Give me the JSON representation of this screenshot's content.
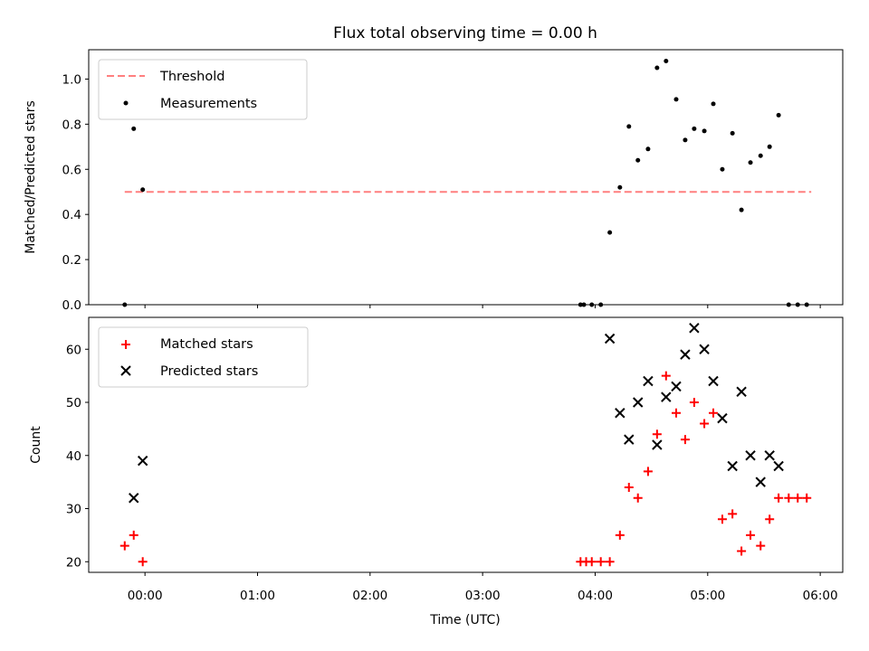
{
  "chart_data": [
    {
      "type": "scatter",
      "title": "Flux total observing time = 0.00 h",
      "xlabel": "",
      "ylabel": "Matched/Predicted stars",
      "ylim": [
        0,
        1.13
      ],
      "yticks": [
        "0.0",
        "0.2",
        "0.4",
        "0.6",
        "0.8",
        "1.0"
      ],
      "xlim_hours": [
        -0.5,
        6.2
      ],
      "legend_position": "upper left",
      "threshold": {
        "name": "Threshold",
        "value": 0.5,
        "x_range": [
          -0.18,
          5.92
        ],
        "color": "#ff7f7f"
      },
      "series": [
        {
          "name": "Measurements",
          "color": "#000000",
          "x": [
            -0.18,
            -0.1,
            -0.02,
            3.87,
            3.9,
            3.97,
            4.05,
            4.13,
            4.22,
            4.3,
            4.38,
            4.47,
            4.55,
            4.63,
            4.72,
            4.8,
            4.88,
            4.97,
            5.05,
            5.13,
            5.22,
            5.3,
            5.38,
            5.47,
            5.55,
            5.63,
            5.72,
            5.8,
            5.88
          ],
          "y": [
            0.0,
            0.78,
            0.51,
            0.0,
            0.0,
            0.0,
            0.0,
            0.32,
            0.52,
            0.79,
            0.64,
            0.69,
            1.05,
            1.08,
            0.91,
            0.73,
            0.78,
            0.77,
            0.89,
            0.6,
            0.76,
            0.42,
            0.63,
            0.66,
            0.7,
            0.84,
            0.0,
            0.0,
            0.0
          ]
        }
      ]
    },
    {
      "type": "scatter",
      "title": "",
      "xlabel": "Time (UTC)",
      "ylabel": "Count",
      "ylim": [
        18,
        66
      ],
      "yticks": [
        "20",
        "30",
        "40",
        "50",
        "60"
      ],
      "xticks": [
        "00:00",
        "01:00",
        "02:00",
        "03:00",
        "04:00",
        "05:00",
        "06:00"
      ],
      "xlim_hours": [
        -0.5,
        6.2
      ],
      "legend_position": "upper left",
      "series": [
        {
          "name": "Matched stars",
          "marker": "plus",
          "color": "#ff0000",
          "x": [
            -0.18,
            -0.1,
            -0.02,
            3.87,
            3.92,
            3.97,
            4.05,
            4.13,
            4.22,
            4.3,
            4.38,
            4.47,
            4.55,
            4.63,
            4.72,
            4.8,
            4.88,
            4.97,
            5.05,
            5.13,
            5.22,
            5.3,
            5.38,
            5.47,
            5.55,
            5.63,
            5.72,
            5.8,
            5.88
          ],
          "y": [
            23,
            25,
            20,
            20,
            20,
            20,
            20,
            20,
            25,
            34,
            32,
            37,
            44,
            55,
            48,
            43,
            50,
            46,
            48,
            28,
            29,
            22,
            25,
            23,
            28,
            32,
            32,
            32,
            32
          ]
        },
        {
          "name": "Predicted stars",
          "marker": "x",
          "color": "#000000",
          "x": [
            -0.1,
            -0.02,
            4.13,
            4.22,
            4.3,
            4.38,
            4.47,
            4.55,
            4.63,
            4.72,
            4.8,
            4.88,
            4.97,
            5.05,
            5.13,
            5.22,
            5.3,
            5.38,
            5.47,
            5.55,
            5.63
          ],
          "y": [
            32,
            39,
            62,
            48,
            43,
            50,
            54,
            42,
            51,
            53,
            59,
            64,
            60,
            54,
            47,
            38,
            52,
            40,
            35,
            40,
            38
          ]
        }
      ]
    }
  ]
}
